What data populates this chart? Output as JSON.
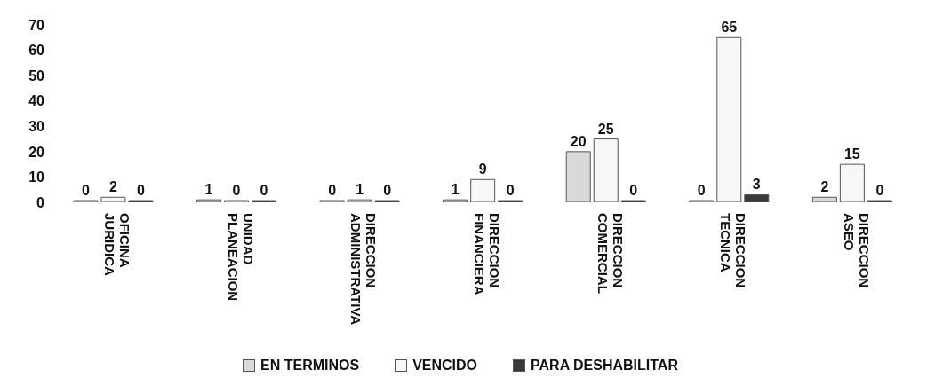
{
  "chart_data": {
    "type": "bar",
    "categories": [
      "OFICINA JURIDICA",
      "UNIDAD PLANEACION",
      "DIRECCION ADMINISTRATIVA",
      "DIRECCION FINANCIERA",
      "DIRECCION COMERCIAL",
      "DIRECCION TECNICA",
      "DIRECCION ASEO"
    ],
    "series": [
      {
        "name": "EN TERMINOS",
        "color": "#d9d9d9",
        "values": [
          0,
          1,
          0,
          1,
          20,
          0,
          2
        ]
      },
      {
        "name": "VENCIDO",
        "color": "#f7f7f7",
        "values": [
          2,
          0,
          1,
          9,
          25,
          65,
          15
        ]
      },
      {
        "name": "PARA DESHABILITAR",
        "color": "#3a3a3a",
        "values": [
          0,
          0,
          0,
          0,
          0,
          3,
          0
        ]
      }
    ],
    "ylim": [
      0,
      70
    ],
    "yticks": [
      0,
      10,
      20,
      30,
      40,
      50,
      60,
      70
    ],
    "data_labels": true,
    "legend": "bottom"
  }
}
